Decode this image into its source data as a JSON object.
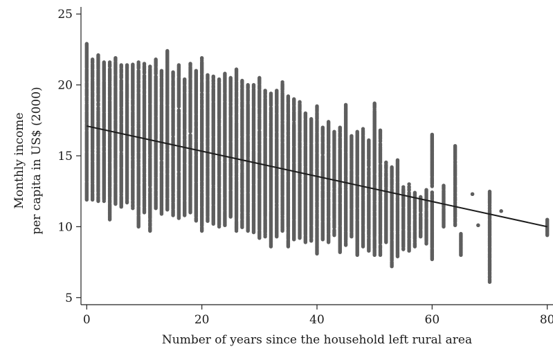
{
  "chart_data": {
    "type": "scatter",
    "title": "",
    "xlabel": "Number of years since the household left rural area",
    "ylabel": [
      "Monthly income",
      "per capita in US$ (2000)"
    ],
    "xlim": [
      -1,
      81
    ],
    "ylim": [
      4.5,
      25.5
    ],
    "x_ticks": [
      0,
      20,
      40,
      60,
      80
    ],
    "y_ticks": [
      5,
      10,
      15,
      20,
      25
    ],
    "x_tick_labels": [
      "0",
      "20",
      "40",
      "60",
      "80"
    ],
    "y_tick_labels": [
      "5",
      "10",
      "15",
      "20",
      "25"
    ],
    "grid": false,
    "legend": "none",
    "colors": {
      "points": "#5e5e5e",
      "fit_line": "#1c1c1c"
    },
    "fit_line": {
      "x": [
        0,
        80
      ],
      "y": [
        17.1,
        10.0
      ]
    },
    "point_columns": [
      {
        "x": 0,
        "ymin": 11.9,
        "ymax": 22.9
      },
      {
        "x": 1,
        "ymin": 11.9,
        "ymax": 21.8
      },
      {
        "x": 2,
        "ymin": 11.8,
        "ymax": 22.1
      },
      {
        "x": 3,
        "ymin": 11.8,
        "ymax": 21.6
      },
      {
        "x": 4,
        "ymin": 10.5,
        "ymax": 21.6
      },
      {
        "x": 5,
        "ymin": 11.6,
        "ymax": 21.9
      },
      {
        "x": 6,
        "ymin": 11.4,
        "ymax": 21.4
      },
      {
        "x": 7,
        "ymin": 11.7,
        "ymax": 21.4
      },
      {
        "x": 8,
        "ymin": 11.3,
        "ymax": 21.5
      },
      {
        "x": 9,
        "ymin": 10.0,
        "ymax": 21.6
      },
      {
        "x": 10,
        "ymin": 11.0,
        "ymax": 21.5
      },
      {
        "x": 11,
        "ymin": 9.7,
        "ymax": 21.3
      },
      {
        "x": 12,
        "ymin": 11.3,
        "ymax": 21.8
      },
      {
        "x": 13,
        "ymin": 10.9,
        "ymax": 21.0
      },
      {
        "x": 14,
        "ymin": 11.2,
        "ymax": 22.4
      },
      {
        "x": 15,
        "ymin": 10.8,
        "ymax": 20.9
      },
      {
        "x": 16,
        "ymin": 10.6,
        "ymax": 21.4
      },
      {
        "x": 17,
        "ymin": 10.8,
        "ymax": 20.4
      },
      {
        "x": 18,
        "ymin": 11.0,
        "ymax": 21.5
      },
      {
        "x": 19,
        "ymin": 10.3,
        "ymax": 21.0
      },
      {
        "x": 20,
        "ymin": 9.7,
        "ymax": 21.9
      },
      {
        "x": 21,
        "ymin": 10.4,
        "ymax": 20.7
      },
      {
        "x": 22,
        "ymin": 10.2,
        "ymax": 20.6
      },
      {
        "x": 23,
        "ymin": 10.0,
        "ymax": 20.4
      },
      {
        "x": 24,
        "ymin": 10.1,
        "ymax": 20.8
      },
      {
        "x": 25,
        "ymin": 10.7,
        "ymax": 20.5
      },
      {
        "x": 26,
        "ymin": 9.7,
        "ymax": 21.1
      },
      {
        "x": 27,
        "ymin": 9.9,
        "ymax": 20.3
      },
      {
        "x": 28,
        "ymin": 9.7,
        "ymax": 20.0
      },
      {
        "x": 29,
        "ymin": 9.6,
        "ymax": 20.0
      },
      {
        "x": 30,
        "ymin": 9.2,
        "ymax": 20.5
      },
      {
        "x": 31,
        "ymin": 9.3,
        "ymax": 19.6
      },
      {
        "x": 32,
        "ymin": 8.6,
        "ymax": 19.4
      },
      {
        "x": 33,
        "ymin": 9.3,
        "ymax": 19.6
      },
      {
        "x": 34,
        "ymin": 9.7,
        "ymax": 20.2
      },
      {
        "x": 35,
        "ymin": 8.6,
        "ymax": 19.2
      },
      {
        "x": 36,
        "ymin": 9.1,
        "ymax": 19.0
      },
      {
        "x": 37,
        "ymin": 9.2,
        "ymax": 18.8
      },
      {
        "x": 38,
        "ymin": 8.9,
        "ymax": 18.0
      },
      {
        "x": 39,
        "ymin": 9.0,
        "ymax": 17.6
      },
      {
        "x": 40,
        "ymin": 8.1,
        "ymax": 18.5
      },
      {
        "x": 41,
        "ymin": 9.1,
        "ymax": 17.0
      },
      {
        "x": 42,
        "ymin": 8.9,
        "ymax": 17.4
      },
      {
        "x": 43,
        "ymin": 9.4,
        "ymax": 16.7
      },
      {
        "x": 44,
        "ymin": 8.2,
        "ymax": 17.0
      },
      {
        "x": 45,
        "ymin": 8.7,
        "ymax": 18.6
      },
      {
        "x": 46,
        "ymin": 9.3,
        "ymax": 16.4
      },
      {
        "x": 47,
        "ymin": 8.0,
        "ymax": 16.7
      },
      {
        "x": 48,
        "ymin": 8.6,
        "ymax": 16.9
      },
      {
        "x": 49,
        "ymin": 8.3,
        "ymax": 16.1
      },
      {
        "x": 50,
        "ymin": 8.0,
        "ymax": 18.7
      },
      {
        "x": 51,
        "ymin": 8.0,
        "ymax": 16.8
      },
      {
        "x": 52,
        "ymin": 8.9,
        "ymax": 14.6
      },
      {
        "x": 53,
        "ymin": 7.2,
        "ymax": 14.2
      },
      {
        "x": 54,
        "ymin": 7.9,
        "ymax": 14.7
      },
      {
        "x": 55,
        "ymin": 8.4,
        "ymax": 12.8
      },
      {
        "x": 56,
        "ymin": 8.3,
        "ymax": 13.0
      },
      {
        "x": 57,
        "ymin": 8.6,
        "ymax": 12.4
      },
      {
        "x": 58,
        "ymin": 9.3,
        "ymax": 12.1
      },
      {
        "x": 59,
        "ymin": 8.8,
        "ymax": 12.6
      },
      {
        "x": 60,
        "ymin": 7.7,
        "ymax": 16.5
      },
      {
        "x": 62,
        "ymin": 10.0,
        "ymax": 12.9
      },
      {
        "x": 64,
        "ymin": 10.1,
        "ymax": 15.7
      },
      {
        "x": 65,
        "ymin": 8.0,
        "ymax": 9.5
      },
      {
        "x": 67,
        "ymin": 12.3,
        "ymax": 12.3
      },
      {
        "x": 68,
        "ymin": 10.1,
        "ymax": 10.1
      },
      {
        "x": 70,
        "ymin": 6.1,
        "ymax": 12.6
      },
      {
        "x": 72,
        "ymin": 11.1,
        "ymax": 11.1
      },
      {
        "x": 80,
        "ymin": 9.4,
        "ymax": 10.5
      }
    ]
  }
}
